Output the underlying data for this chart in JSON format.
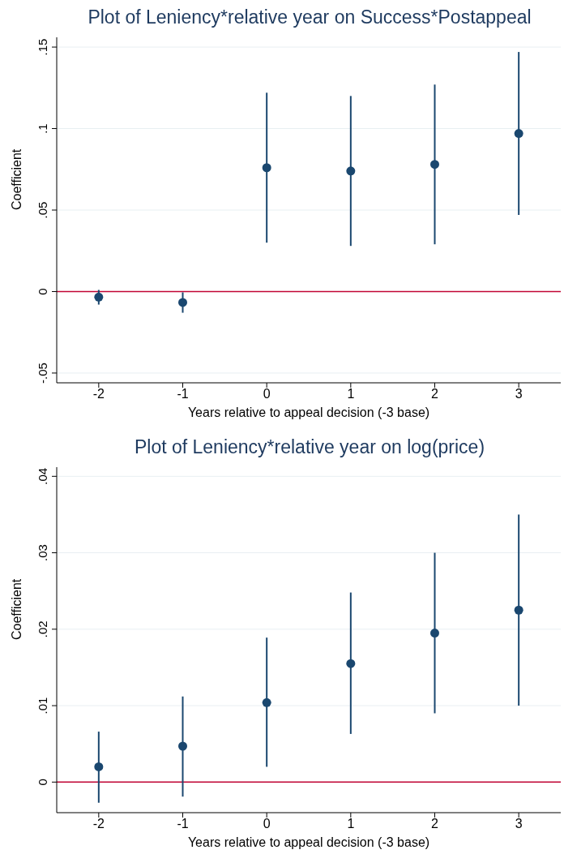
{
  "chart_data": [
    {
      "type": "scatter",
      "title": "Plot of Leniency*relative year on Success*Postappeal",
      "xlabel": "Years relative to appeal decision (-3 base)",
      "ylabel": "Coefficient",
      "x": [
        -2,
        -1,
        0,
        1,
        2,
        3
      ],
      "xlim": [
        -2.5,
        3.5
      ],
      "xticks": [
        -2,
        -1,
        0,
        1,
        2,
        3
      ],
      "ylim": [
        -0.056,
        0.156
      ],
      "yticks": [
        {
          "value": -0.05,
          "label": "-.05"
        },
        0,
        {
          "value": 0.05,
          "label": ".05"
        },
        {
          "value": 0.1,
          "label": ".1"
        },
        {
          "value": 0.15,
          "label": ".15"
        }
      ],
      "grid": "y",
      "marker": "circle",
      "series": [
        {
          "color": "#1a476f",
          "values": [
            -0.0034,
            -0.0067,
            0.076,
            0.074,
            0.078,
            0.097
          ],
          "errors": [
            [
              -0.008,
              0.001
            ],
            [
              -0.013,
              -0.0005
            ],
            [
              0.03,
              0.122
            ],
            [
              0.028,
              0.12
            ],
            [
              0.029,
              0.127
            ],
            [
              0.047,
              0.147
            ]
          ]
        }
      ],
      "ref_lines": [
        {
          "axis": "y",
          "value": 0,
          "color": "#c10534"
        }
      ]
    },
    {
      "type": "scatter",
      "title": "Plot of Leniency*relative year on log(price)",
      "xlabel": "Years relative to appeal decision (-3 base)",
      "ylabel": "Coefficient",
      "x": [
        -2,
        -1,
        0,
        1,
        2,
        3
      ],
      "xlim": [
        -2.5,
        3.5
      ],
      "xticks": [
        -2,
        -1,
        0,
        1,
        2,
        3
      ],
      "ylim": [
        -0.004,
        0.0412
      ],
      "yticks": [
        0,
        {
          "value": 0.01,
          "label": ".01"
        },
        {
          "value": 0.02,
          "label": ".02"
        },
        {
          "value": 0.03,
          "label": ".03"
        },
        {
          "value": 0.04,
          "label": ".04"
        }
      ],
      "grid": "y",
      "marker": "circle",
      "series": [
        {
          "color": "#1a476f",
          "values": [
            0.002,
            0.0047,
            0.0104,
            0.0155,
            0.0195,
            0.0225
          ],
          "errors": [
            [
              -0.0027,
              0.0066
            ],
            [
              -0.0019,
              0.0112
            ],
            [
              0.002,
              0.0189
            ],
            [
              0.0063,
              0.0248
            ],
            [
              0.009,
              0.03
            ],
            [
              0.01,
              0.035
            ]
          ]
        }
      ],
      "ref_lines": [
        {
          "axis": "y",
          "value": 0,
          "color": "#c10534"
        }
      ]
    }
  ]
}
